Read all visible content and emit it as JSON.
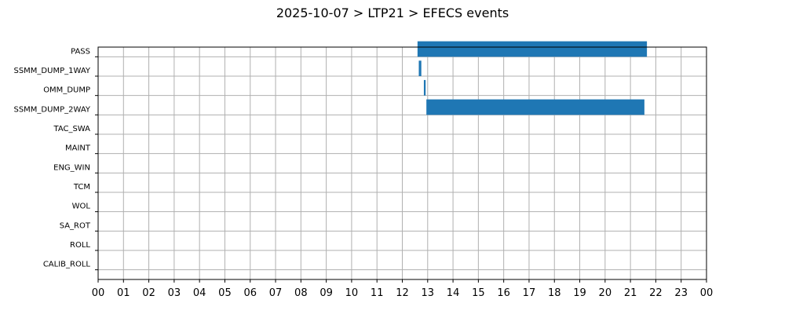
{
  "chart_data": {
    "type": "bar",
    "orientation": "horizontal",
    "title": "2025-10-07 > LTP21 > EFECS events",
    "xlabel": "",
    "ylabel": "",
    "categories": [
      "PASS",
      "SSMM_DUMP_1WAY",
      "OMM_DUMP",
      "SSMM_DUMP_2WAY",
      "TAC_SWA",
      "MAINT",
      "ENG_WIN",
      "TCM",
      "WOL",
      "SA_ROT",
      "ROLL",
      "CALIB_ROLL"
    ],
    "xticks": [
      "00",
      "01",
      "02",
      "03",
      "04",
      "05",
      "06",
      "07",
      "08",
      "09",
      "10",
      "11",
      "12",
      "13",
      "14",
      "15",
      "16",
      "17",
      "18",
      "19",
      "20",
      "21",
      "22",
      "23",
      "00"
    ],
    "xlim": [
      0,
      24
    ],
    "grid": true,
    "bar_color": "#1f77b4",
    "series": [
      {
        "intervals": [
          {
            "category": "PASS",
            "start": 12.6,
            "end": 21.65
          },
          {
            "category": "SSMM_DUMP_1WAY",
            "start": 12.65,
            "end": 12.75
          },
          {
            "category": "OMM_DUMP",
            "start": 12.85,
            "end": 12.92
          },
          {
            "category": "SSMM_DUMP_2WAY",
            "start": 12.95,
            "end": 21.55
          }
        ]
      }
    ]
  }
}
